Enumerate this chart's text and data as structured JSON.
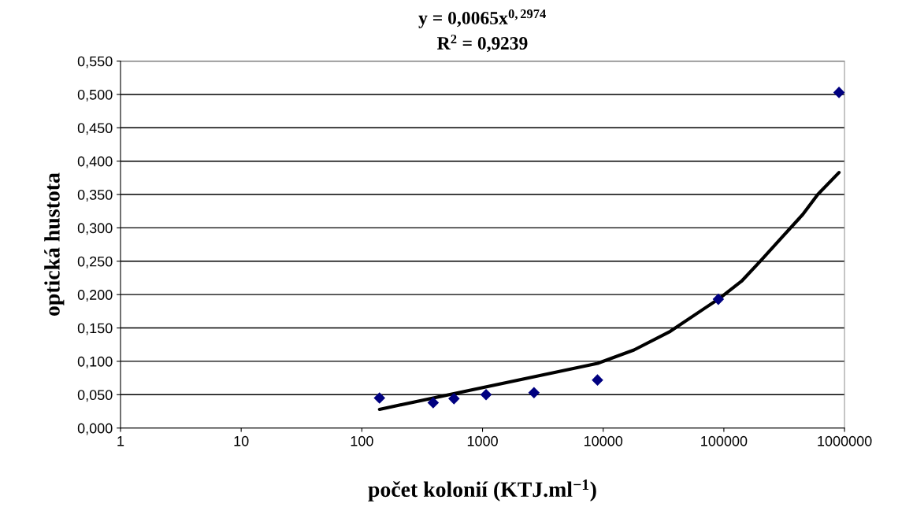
{
  "chart_data": {
    "type": "scatter",
    "title": "y = 0,0065x$^{0,2974}$",
    "subtitle": "R$^{2}$ = 0,9239",
    "xlabel": "počet kolonií (KTJ.ml$^{−1}$)",
    "ylabel": "optická hustota",
    "log": "x",
    "xlim": [
      1,
      1000000
    ],
    "xticks": [
      1,
      10,
      100,
      1000,
      10000,
      100000,
      1000000
    ],
    "ylim": [
      0,
      0.55
    ],
    "yticks": [
      {
        "value": 0,
        "label": "0,000"
      },
      {
        "value": 0.05,
        "label": "0,050"
      },
      {
        "value": 0.1,
        "label": "0,100"
      },
      {
        "value": 0.15,
        "label": "0,150"
      },
      {
        "value": 0.2,
        "label": "0,200"
      },
      {
        "value": 0.25,
        "label": "0,250"
      },
      {
        "value": 0.3,
        "label": "0,300"
      },
      {
        "value": 0.35,
        "label": "0,350"
      },
      {
        "value": 0.4,
        "label": "0,400"
      },
      {
        "value": 0.45,
        "label": "0,450"
      },
      {
        "value": 0.5,
        "label": "0,500"
      },
      {
        "value": 0.55,
        "label": "0,550"
      }
    ],
    "grid": "y",
    "marker": "diamond",
    "legend": false,
    "series": [
      {
        "color": "#000080",
        "x": [
          140,
          390,
          580,
          1070,
          2670,
          8970,
          90000,
          900000
        ],
        "values": [
          0.045,
          0.038,
          0.044,
          0.05,
          0.053,
          0.072,
          0.193,
          0.503
        ]
      },
      {
        "type": "line",
        "color": "#000000",
        "line_style": "solid",
        "marker": "none",
        "x": [
          140,
          9000,
          18000,
          36000,
          70000,
          90000,
          140000,
          200000,
          300000,
          450000,
          600000,
          900000
        ],
        "values": [
          0.028,
          0.097,
          0.117,
          0.145,
          0.18,
          0.193,
          0.22,
          0.25,
          0.285,
          0.32,
          0.35,
          0.383
        ]
      }
    ]
  }
}
